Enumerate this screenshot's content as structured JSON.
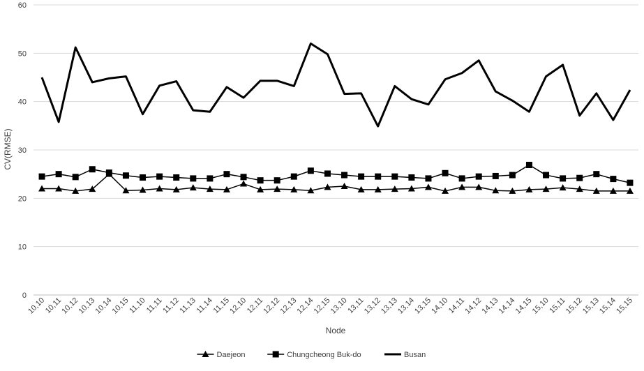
{
  "chart_data": {
    "type": "line",
    "xlabel": "Node",
    "ylabel": "CV(RMSE)",
    "ylim": [
      0,
      60
    ],
    "yticks": [
      0,
      10,
      20,
      30,
      40,
      50,
      60
    ],
    "grid": true,
    "legend_position": "bottom",
    "categories": [
      "10,10",
      "10,11",
      "10,12",
      "10,13",
      "10,14",
      "10,15",
      "11,10",
      "11,11",
      "11,12",
      "11,13",
      "11,14",
      "11,15",
      "12,10",
      "12,11",
      "12,12",
      "12,13",
      "12,14",
      "12,15",
      "13,10",
      "13,11",
      "13,12",
      "13,13",
      "13,14",
      "13,15",
      "14,10",
      "14,11",
      "14,12",
      "14,13",
      "14,14",
      "14,15",
      "15,10",
      "15,11",
      "15,12",
      "15,13",
      "15,14",
      "15,15"
    ],
    "series": [
      {
        "name": "Daejeon",
        "marker": "triangle",
        "color": "#000000",
        "values": [
          22.0,
          22.0,
          21.5,
          21.9,
          25.0,
          21.6,
          21.7,
          22.0,
          21.8,
          22.2,
          21.9,
          21.8,
          23.0,
          21.8,
          21.9,
          21.8,
          21.6,
          22.3,
          22.5,
          21.8,
          21.8,
          21.9,
          22.0,
          22.3,
          21.5,
          22.3,
          22.3,
          21.6,
          21.5,
          21.8,
          21.9,
          22.2,
          21.9,
          21.5,
          21.5,
          21.5
        ]
      },
      {
        "name": "Chungcheong Buk-do",
        "marker": "square",
        "color": "#000000",
        "values": [
          24.5,
          25.0,
          24.4,
          26.0,
          25.3,
          24.7,
          24.3,
          24.5,
          24.3,
          24.1,
          24.1,
          25.0,
          24.4,
          23.7,
          23.7,
          24.5,
          25.7,
          25.1,
          24.8,
          24.5,
          24.5,
          24.5,
          24.3,
          24.1,
          25.2,
          24.1,
          24.5,
          24.6,
          24.8,
          26.9,
          24.8,
          24.1,
          24.2,
          25.0,
          24.0,
          23.2
        ]
      },
      {
        "name": "Busan",
        "marker": "none",
        "color": "#000000",
        "values": [
          45.0,
          35.8,
          51.2,
          44.0,
          44.8,
          45.2,
          37.4,
          43.3,
          44.2,
          38.2,
          37.9,
          43.0,
          40.8,
          44.3,
          44.3,
          43.2,
          52.0,
          49.8,
          41.6,
          41.7,
          34.9,
          43.2,
          40.5,
          39.4,
          44.6,
          45.9,
          48.5,
          42.1,
          40.2,
          37.9,
          45.2,
          47.6,
          37.1,
          41.7,
          36.2,
          42.4
        ]
      }
    ]
  }
}
